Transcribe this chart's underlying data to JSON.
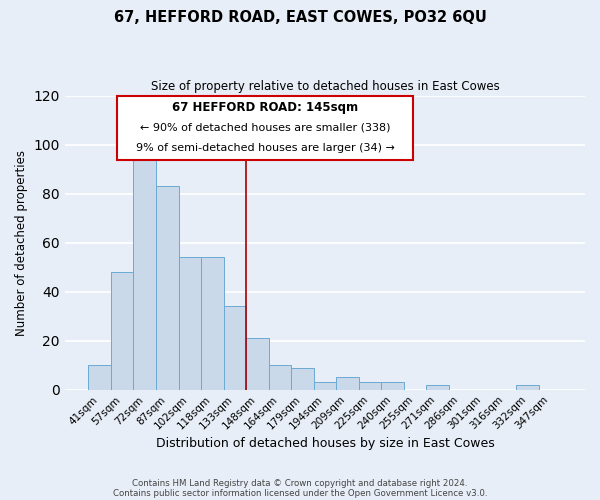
{
  "title": "67, HEFFORD ROAD, EAST COWES, PO32 6QU",
  "subtitle": "Size of property relative to detached houses in East Cowes",
  "xlabel": "Distribution of detached houses by size in East Cowes",
  "ylabel": "Number of detached properties",
  "footer_line1": "Contains HM Land Registry data © Crown copyright and database right 2024.",
  "footer_line2": "Contains public sector information licensed under the Open Government Licence v3.0.",
  "bar_labels": [
    "41sqm",
    "57sqm",
    "72sqm",
    "87sqm",
    "102sqm",
    "118sqm",
    "133sqm",
    "148sqm",
    "164sqm",
    "179sqm",
    "194sqm",
    "209sqm",
    "225sqm",
    "240sqm",
    "255sqm",
    "271sqm",
    "286sqm",
    "301sqm",
    "316sqm",
    "332sqm",
    "347sqm"
  ],
  "bar_values": [
    10,
    48,
    100,
    83,
    54,
    54,
    34,
    21,
    10,
    9,
    3,
    5,
    3,
    3,
    0,
    2,
    0,
    0,
    0,
    2,
    0
  ],
  "bar_color": "#cad9ea",
  "bar_edge_color": "#6aaad4",
  "ylim": [
    0,
    120
  ],
  "yticks": [
    0,
    20,
    40,
    60,
    80,
    100,
    120
  ],
  "vline_color": "#aa0000",
  "annotation_title": "67 HEFFORD ROAD: 145sqm",
  "annotation_line1": "← 90% of detached houses are smaller (338)",
  "annotation_line2": "9% of semi-detached houses are larger (34) →",
  "background_color": "#e8eef7",
  "grid_color": "#ffffff"
}
